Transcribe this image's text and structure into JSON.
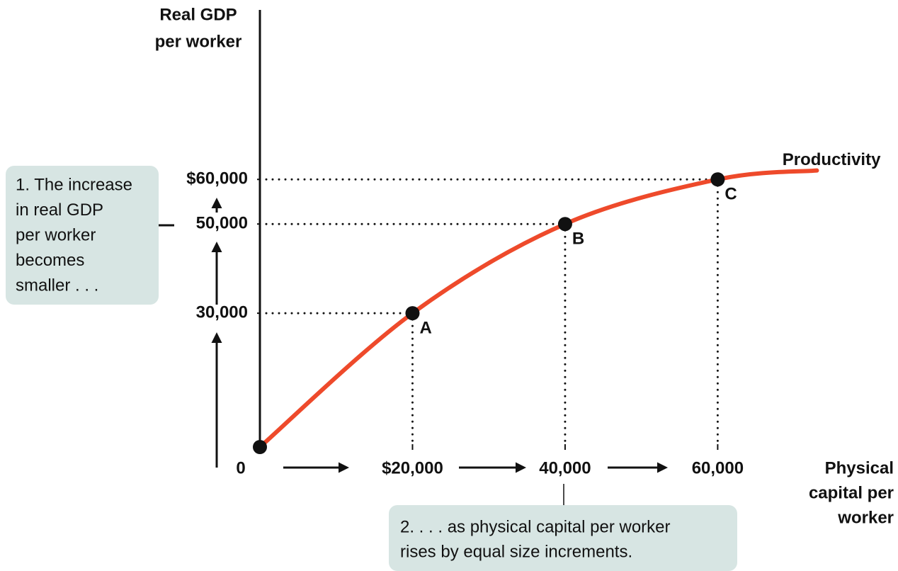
{
  "chart_data": {
    "type": "line",
    "ylabel": [
      "Real GDP",
      "per worker"
    ],
    "xlabel": [
      "Physical",
      "capital per",
      "worker"
    ],
    "x": [
      0,
      20000,
      40000,
      60000,
      73000
    ],
    "series": [
      {
        "name": "Productivity",
        "color": "#ee4a2b",
        "values": [
          0,
          30000,
          50000,
          60000,
          62000
        ],
        "point_labels": [
          null,
          "A",
          "B",
          "C",
          null
        ],
        "markers": [
          true,
          true,
          true,
          true,
          false
        ]
      }
    ],
    "xlim": [
      0,
      75000
    ],
    "ylim": [
      0,
      98000
    ],
    "xticks": [
      0,
      {
        "value": 20000,
        "label": "$20,000"
      },
      {
        "value": 40000,
        "label": "40,000"
      },
      {
        "value": 60000,
        "label": "60,000"
      }
    ],
    "yticks": [
      {
        "value": 30000,
        "label": "30,000"
      },
      {
        "value": 50000,
        "label": "50,000"
      },
      {
        "value": 60000,
        "label": "$60,000"
      }
    ],
    "annotations": [
      [
        "1. The increase",
        "in real GDP",
        "per worker",
        "becomes",
        "smaller . . ."
      ],
      [
        "2. . . . as physical capital per worker",
        "rises by equal size increments."
      ]
    ]
  }
}
